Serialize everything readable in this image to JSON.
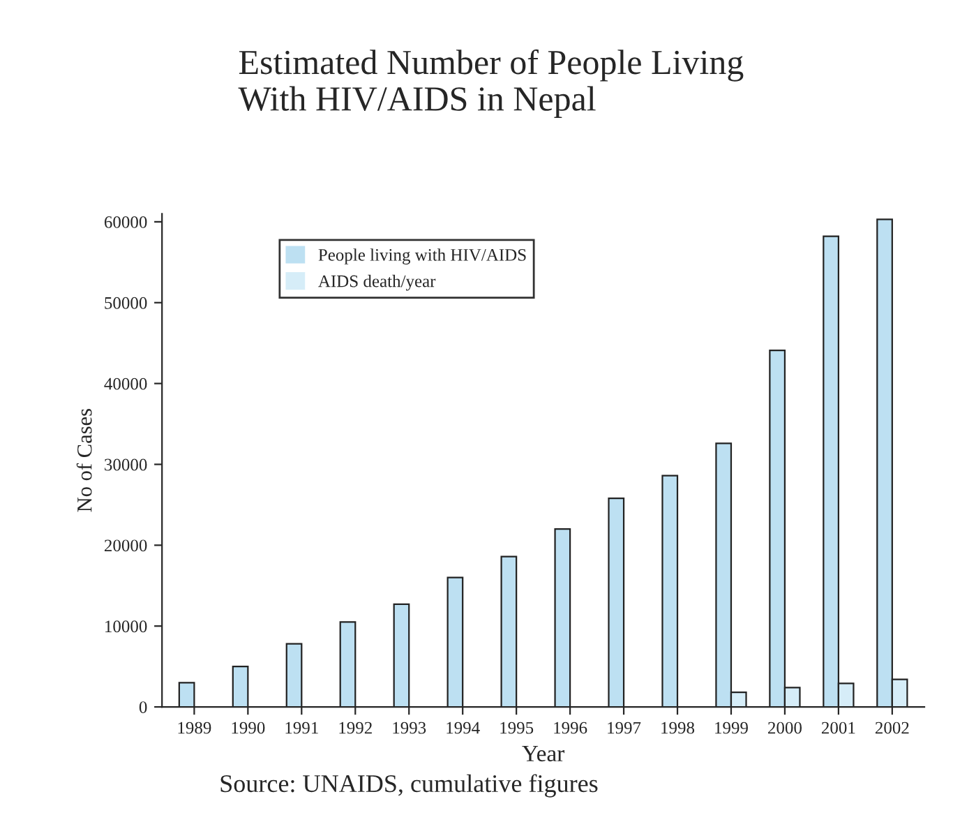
{
  "chart_data": {
    "type": "bar",
    "title": "Estimated Number of People Living\nWith HIV/AIDS in Nepal",
    "xlabel": "Year",
    "ylabel": "No of Cases",
    "categories": [
      "1989",
      "1990",
      "1991",
      "1992",
      "1993",
      "1994",
      "1995",
      "1996",
      "1997",
      "1998",
      "1999",
      "2000",
      "2001",
      "2002"
    ],
    "series": [
      {
        "name": "People living with HIV/AIDS",
        "color": "#bde0f2",
        "values": [
          3000,
          5000,
          7800,
          10500,
          12700,
          16000,
          18600,
          22000,
          25800,
          28600,
          32600,
          44100,
          58200,
          60300
        ]
      },
      {
        "name": "AIDS death/year",
        "color": "#d6edf8",
        "values": [
          null,
          null,
          null,
          null,
          null,
          null,
          null,
          null,
          null,
          null,
          1800,
          2400,
          2900,
          3400
        ]
      }
    ],
    "ylim": [
      0,
      61000
    ],
    "yticks": [
      0,
      10000,
      20000,
      30000,
      40000,
      50000,
      60000
    ],
    "grid": false,
    "legend": "top left",
    "annotations": [
      "Source: UNAIDS, cumulative figures"
    ]
  }
}
